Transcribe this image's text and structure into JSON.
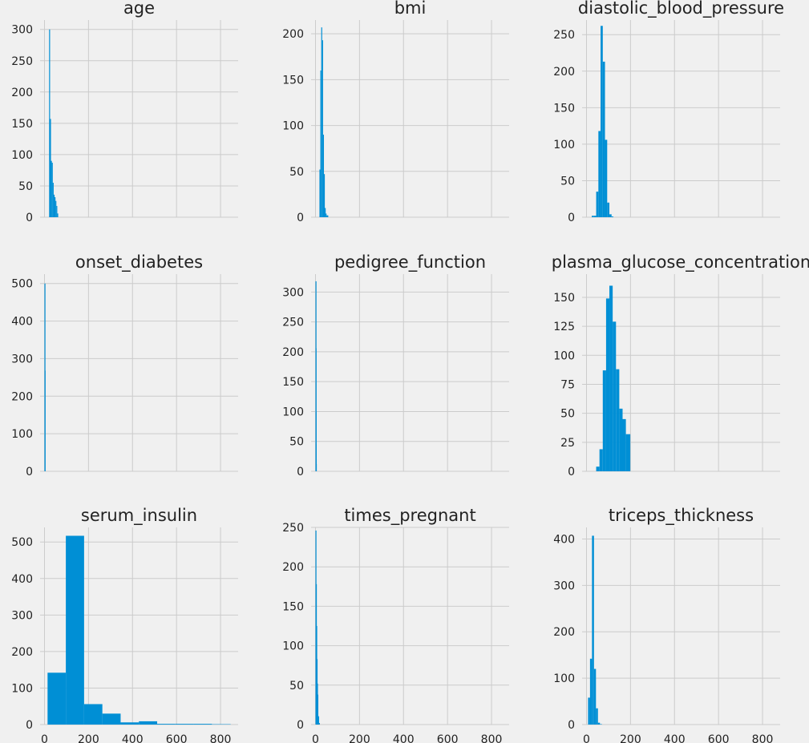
{
  "chart_data": [
    {
      "type": "bar",
      "title": "age",
      "x_ticks": [],
      "y_ticks": [
        0,
        50,
        100,
        150,
        200,
        250,
        300
      ],
      "ylim": [
        0,
        315
      ],
      "xlim": [
        -20,
        880
      ],
      "bins": [
        [
          21,
          25.1,
          300
        ],
        [
          25.1,
          29.2,
          157
        ],
        [
          29.2,
          33.3,
          90
        ],
        [
          33.3,
          37.4,
          87
        ],
        [
          37.4,
          41.5,
          55
        ],
        [
          41.5,
          45.6,
          36
        ],
        [
          45.6,
          49.7,
          32
        ],
        [
          49.7,
          53.8,
          26
        ],
        [
          53.8,
          57.9,
          18
        ],
        [
          57.9,
          62,
          6
        ]
      ]
    },
    {
      "type": "bar",
      "title": "bmi",
      "x_ticks": [],
      "y_ticks": [
        0,
        50,
        100,
        150,
        200
      ],
      "ylim": [
        0,
        215
      ],
      "xlim": [
        -20,
        880
      ],
      "bins": [
        [
          18,
          22,
          52
        ],
        [
          22,
          26,
          160
        ],
        [
          26,
          30,
          207
        ],
        [
          30,
          34,
          193
        ],
        [
          34,
          38,
          90
        ],
        [
          38,
          42,
          47
        ],
        [
          42,
          46,
          10
        ],
        [
          46,
          50,
          4
        ],
        [
          50,
          58,
          2
        ]
      ]
    },
    {
      "type": "bar",
      "title": "diastolic_blood_pressure",
      "x_ticks": [],
      "y_ticks": [
        0,
        50,
        100,
        150,
        200,
        250
      ],
      "ylim": [
        0,
        270
      ],
      "xlim": [
        -20,
        880
      ],
      "bins": [
        [
          24,
          34,
          2
        ],
        [
          34,
          44,
          2
        ],
        [
          44,
          54,
          35
        ],
        [
          54,
          64,
          118
        ],
        [
          64,
          74,
          262
        ],
        [
          74,
          84,
          213
        ],
        [
          84,
          94,
          106
        ],
        [
          94,
          104,
          20
        ],
        [
          104,
          114,
          4
        ],
        [
          114,
          122,
          1
        ]
      ]
    },
    {
      "type": "bar",
      "title": "onset_diabetes",
      "x_ticks": [],
      "y_ticks": [
        0,
        100,
        200,
        300,
        400,
        500
      ],
      "ylim": [
        0,
        525
      ],
      "xlim": [
        -20,
        880
      ],
      "bins": [
        [
          0,
          0.5,
          500
        ],
        [
          0.5,
          1,
          268
        ]
      ]
    },
    {
      "type": "bar",
      "title": "pedigree_function",
      "x_ticks": [],
      "y_ticks": [
        0,
        50,
        100,
        150,
        200,
        250,
        300
      ],
      "ylim": [
        0,
        330
      ],
      "xlim": [
        -20,
        880
      ],
      "bins": [
        [
          0.08,
          0.31,
          318
        ],
        [
          0.31,
          0.55,
          206
        ],
        [
          0.55,
          0.78,
          100
        ],
        [
          0.78,
          1.02,
          45
        ],
        [
          1.02,
          1.25,
          35
        ],
        [
          1.25,
          1.49,
          20
        ],
        [
          1.49,
          2.42,
          12
        ]
      ]
    },
    {
      "type": "bar",
      "title": "plasma_glucose_concentration",
      "x_ticks": [],
      "y_ticks": [
        0,
        25,
        50,
        75,
        100,
        125,
        150
      ],
      "ylim": [
        0,
        170
      ],
      "xlim": [
        -20,
        880
      ],
      "bins": [
        [
          44,
          59,
          4
        ],
        [
          59,
          74,
          19
        ],
        [
          74,
          89,
          87
        ],
        [
          89,
          104,
          149
        ],
        [
          104,
          119,
          160
        ],
        [
          119,
          134,
          129
        ],
        [
          134,
          149,
          88
        ],
        [
          149,
          164,
          54
        ],
        [
          164,
          179,
          45
        ],
        [
          179,
          199,
          32
        ]
      ]
    },
    {
      "type": "bar",
      "title": "serum_insulin",
      "x_ticks": [
        0,
        200,
        400,
        600,
        800
      ],
      "y_ticks": [
        0,
        100,
        200,
        300,
        400,
        500
      ],
      "ylim": [
        0,
        540
      ],
      "xlim": [
        -20,
        880
      ],
      "bins": [
        [
          14,
          97,
          142
        ],
        [
          97,
          180,
          517
        ],
        [
          180,
          263,
          56
        ],
        [
          263,
          346,
          30
        ],
        [
          346,
          429,
          6
        ],
        [
          429,
          512,
          9
        ],
        [
          512,
          595,
          2
        ],
        [
          595,
          678,
          2
        ],
        [
          678,
          761,
          2
        ],
        [
          761,
          846,
          1
        ]
      ]
    },
    {
      "type": "bar",
      "title": "times_pregnant",
      "x_ticks": [
        0,
        200,
        400,
        600,
        800
      ],
      "y_ticks": [
        0,
        50,
        100,
        150,
        200,
        250
      ],
      "ylim": [
        0,
        250
      ],
      "xlim": [
        -20,
        880
      ],
      "bins": [
        [
          0,
          1.7,
          246
        ],
        [
          1.7,
          3.4,
          178
        ],
        [
          3.4,
          5.1,
          125
        ],
        [
          5.1,
          6.8,
          83
        ],
        [
          6.8,
          8.5,
          52
        ],
        [
          8.5,
          10.2,
          38
        ],
        [
          10.2,
          11.9,
          11
        ],
        [
          11.9,
          13.6,
          10
        ],
        [
          13.6,
          15.3,
          2
        ],
        [
          15.3,
          17,
          2
        ]
      ]
    },
    {
      "type": "bar",
      "title": "triceps_thickness",
      "x_ticks": [
        0,
        200,
        400,
        600,
        800
      ],
      "y_ticks": [
        0,
        100,
        200,
        300,
        400
      ],
      "ylim": [
        0,
        425
      ],
      "xlim": [
        -20,
        880
      ],
      "bins": [
        [
          7,
          16,
          58
        ],
        [
          16,
          25,
          142
        ],
        [
          25,
          34,
          407
        ],
        [
          34,
          43,
          120
        ],
        [
          43,
          52,
          35
        ],
        [
          52,
          61,
          4
        ],
        [
          61,
          70,
          1
        ]
      ]
    }
  ]
}
